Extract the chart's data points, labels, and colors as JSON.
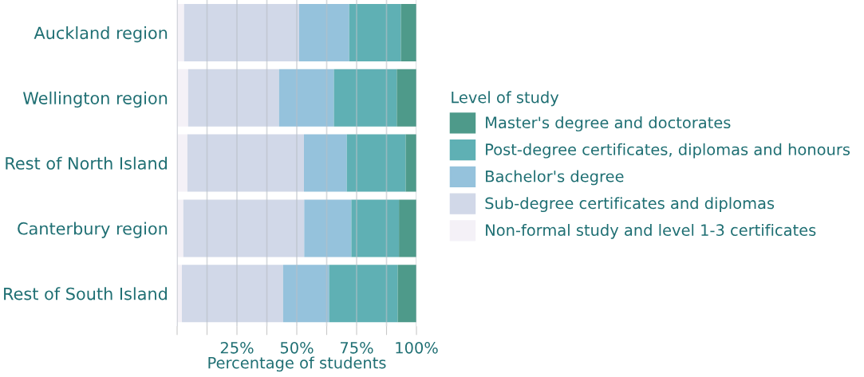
{
  "chart_data": {
    "type": "bar",
    "orientation": "horizontal",
    "stacked": true,
    "categories": [
      "Auckland region",
      "Wellington region",
      "Rest of North Island",
      "Canterbury region",
      "Rest of South Island"
    ],
    "series": [
      {
        "name": "Non-formal study and level 1-3 certificates",
        "color": "#f4f1f7",
        "values": [
          2.9,
          4.6,
          4.3,
          2.6,
          2.0
        ]
      },
      {
        "name": "Sub-degree certificates and diplomas",
        "color": "#d1d8e8",
        "values": [
          48.1,
          38.0,
          48.7,
          50.5,
          42.3
        ]
      },
      {
        "name": "Bachelor's degree",
        "color": "#95c2dc",
        "values": [
          20.9,
          22.9,
          17.9,
          19.7,
          19.2
        ]
      },
      {
        "name": "Post-degree certificates, diplomas and honours",
        "color": "#5fb0b4",
        "values": [
          21.6,
          26.3,
          24.6,
          19.9,
          28.7
        ]
      },
      {
        "name": "Master's degree and doctorates",
        "color": "#4e9a8a",
        "values": [
          6.5,
          8.2,
          4.5,
          7.3,
          7.8
        ]
      }
    ],
    "xlabel": "Percentage of students",
    "legend_title": "Level of study",
    "legend": "right",
    "xlim": [
      0,
      100
    ],
    "xticks": [
      {
        "value": 0,
        "label": null
      },
      {
        "value": 12.5,
        "label": null
      },
      {
        "value": 25,
        "label": "25%"
      },
      {
        "value": 37.5,
        "label": null
      },
      {
        "value": 50,
        "label": "50%"
      },
      {
        "value": 62.5,
        "label": null
      },
      {
        "value": 75,
        "label": "75%"
      },
      {
        "value": 87.5,
        "label": null
      },
      {
        "value": 100,
        "label": "100%"
      }
    ],
    "grid": "x"
  }
}
